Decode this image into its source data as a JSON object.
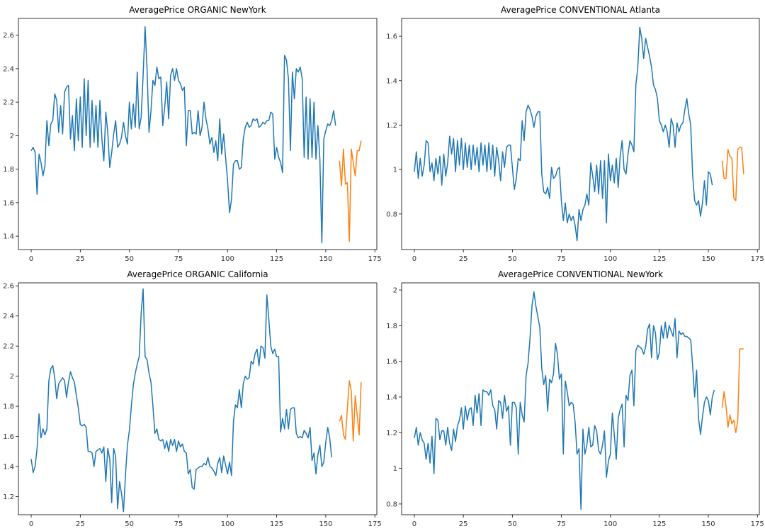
{
  "figure": {
    "colors": {
      "history": "#1f77b4",
      "forecast": "#ff7f0e",
      "axes": "#000000"
    }
  },
  "chart_data": [
    {
      "type": "line",
      "title": "AveragePrice ORGANIC NewYork",
      "xlim": [
        -6.5,
        176
      ],
      "ylim": [
        1.32,
        2.7
      ],
      "xticks": [
        0,
        25,
        50,
        75,
        100,
        125,
        150,
        175
      ],
      "yticks": [
        1.4,
        1.6,
        1.8,
        2.0,
        2.2,
        2.4,
        2.6
      ],
      "series": [
        {
          "name": "history",
          "color": "#1f77b4",
          "x_start": 0,
          "values": [
            1.91,
            1.93,
            1.9,
            1.65,
            1.89,
            1.84,
            1.76,
            1.82,
            2.09,
            1.94,
            2.07,
            2.09,
            2.25,
            2.21,
            2.02,
            2.18,
            2.01,
            2.26,
            2.29,
            2.3,
            1.98,
            2.12,
            1.91,
            2.22,
            1.97,
            2.23,
            1.93,
            2.34,
            2.0,
            2.33,
            1.93,
            2.21,
            1.96,
            2.18,
            1.93,
            2.21,
            1.98,
            1.85,
            2.14,
            2.02,
            1.81,
            1.9,
            2.01,
            2.09,
            1.93,
            1.95,
            1.99,
            2.08,
            2.0,
            1.95,
            2.2,
            2.04,
            2.19,
            2.05,
            2.38,
            2.04,
            2.11,
            2.36,
            2.65,
            2.4,
            2.02,
            2.15,
            2.33,
            2.3,
            2.41,
            2.34,
            2.35,
            2.06,
            2.17,
            2.32,
            2.1,
            2.36,
            2.4,
            2.33,
            2.4,
            2.33,
            2.31,
            2.27,
            2.29,
            1.94,
            2.15,
            2.15,
            2.01,
            2.02,
            2.01,
            2.15,
            2.0,
            2.05,
            2.2,
            2.1,
            2.04,
            1.95,
            1.99,
            1.9,
            1.97,
            1.85,
            2.1,
            1.89,
            2.01,
            1.87,
            1.73,
            1.54,
            1.62,
            1.83,
            1.85,
            1.85,
            1.8,
            1.81,
            1.98,
            2.05,
            2.08,
            2.05,
            2.06,
            2.1,
            2.09,
            2.1,
            2.05,
            2.06,
            2.08,
            2.07,
            2.09,
            2.09,
            2.14,
            2.13,
            1.86,
            1.93,
            1.87,
            1.84,
            1.78,
            2.48,
            2.45,
            2.34,
            1.91,
            2.38,
            2.22,
            2.4,
            2.38,
            2.41,
            2.34,
            1.87,
            2.23,
            1.86,
            2.22,
            1.87,
            2.2,
            1.86,
            2.06,
            1.86,
            1.36,
            1.98,
            2.03,
            2.07,
            2.06,
            2.09,
            2.15,
            2.06
          ]
        },
        {
          "name": "forecast",
          "color": "#ff7f0e",
          "x_start": 157,
          "values": [
            1.85,
            1.7,
            1.92,
            1.71,
            1.72,
            1.37,
            1.92,
            1.84,
            1.76,
            1.91,
            1.91,
            1.97
          ]
        }
      ]
    },
    {
      "type": "line",
      "title": "AveragePrice CONVENTIONAL Atlanta",
      "xlim": [
        -6.5,
        176
      ],
      "ylim": [
        0.64,
        1.68
      ],
      "xticks": [
        0,
        25,
        50,
        75,
        100,
        125,
        150,
        175
      ],
      "yticks": [
        0.8,
        1.0,
        1.2,
        1.4,
        1.6
      ],
      "series": [
        {
          "name": "history",
          "color": "#1f77b4",
          "x_start": 0,
          "values": [
            0.99,
            1.08,
            0.96,
            1.05,
            0.97,
            1.02,
            1.13,
            1.12,
            0.99,
            1.03,
            0.95,
            1.05,
            0.98,
            1.06,
            0.93,
            1.07,
            0.97,
            1.03,
            1.15,
            1.07,
            1.14,
            0.99,
            1.13,
            1.02,
            1.14,
            1.0,
            1.12,
            1.01,
            1.11,
            1.0,
            1.11,
            1.02,
            1.1,
            0.99,
            1.12,
            1.02,
            1.11,
            0.99,
            1.12,
            1.0,
            1.11,
            0.97,
            1.1,
            1.04,
            0.95,
            1.08,
            1.01,
            1.1,
            1.11,
            1.11,
            1.01,
            0.91,
            0.96,
            1.05,
            1.04,
            1.22,
            1.13,
            1.26,
            1.29,
            1.27,
            1.24,
            1.19,
            1.24,
            1.26,
            1.26,
            0.98,
            0.9,
            0.89,
            0.92,
            0.87,
            1.01,
            0.96,
            0.97,
            1.0,
            1.01,
            0.86,
            0.77,
            0.85,
            0.76,
            0.8,
            0.77,
            0.79,
            0.75,
            0.68,
            0.82,
            0.77,
            0.82,
            0.84,
            0.89,
            0.84,
            1.03,
            0.97,
            0.9,
            1.02,
            0.89,
            1.04,
            0.87,
            1.04,
            0.76,
            1.07,
            0.95,
            1.02,
            0.94,
            1.05,
            0.92,
            1.06,
            1.13,
            1.0,
            0.98,
            1.07,
            1.13,
            1.11,
            1.08,
            1.38,
            1.46,
            1.64,
            1.59,
            1.5,
            1.59,
            1.55,
            1.51,
            1.46,
            1.38,
            1.36,
            1.32,
            1.22,
            1.2,
            1.17,
            1.2,
            1.17,
            1.1,
            1.23,
            1.2,
            1.1,
            1.21,
            1.17,
            1.2,
            1.21,
            1.27,
            1.32,
            1.25,
            1.2,
            0.97,
            0.86,
            0.84,
            0.86,
            0.79,
            0.85,
            0.95,
            0.84,
            0.99,
            0.98,
            0.93
          ]
        },
        {
          "name": "forecast",
          "color": "#ff7f0e",
          "x_start": 157,
          "values": [
            1.04,
            0.96,
            0.96,
            1.09,
            1.06,
            1.05,
            0.87,
            0.86,
            1.09,
            1.1,
            1.1,
            0.98
          ]
        }
      ]
    },
    {
      "type": "line",
      "title": "AveragePrice ORGANIC California",
      "xlim": [
        -6.5,
        176
      ],
      "ylim": [
        1.08,
        2.62
      ],
      "xticks": [
        0,
        25,
        50,
        75,
        100,
        125,
        150,
        175
      ],
      "yticks": [
        1.2,
        1.4,
        1.6,
        1.8,
        2.0,
        2.2,
        2.4,
        2.6
      ],
      "series": [
        {
          "name": "history",
          "color": "#1f77b4",
          "x_start": 0,
          "values": [
            1.45,
            1.36,
            1.4,
            1.52,
            1.75,
            1.59,
            1.65,
            1.61,
            1.65,
            1.97,
            2.05,
            2.07,
            1.99,
            1.85,
            1.95,
            1.97,
            1.99,
            1.97,
            1.86,
            1.96,
            2.03,
            1.99,
            1.96,
            1.87,
            1.79,
            1.68,
            1.67,
            1.68,
            1.66,
            1.5,
            1.5,
            1.49,
            1.4,
            1.5,
            1.51,
            1.52,
            1.49,
            1.53,
            1.3,
            1.52,
            1.45,
            1.16,
            1.52,
            1.47,
            1.12,
            1.3,
            1.22,
            1.1,
            1.34,
            1.54,
            1.64,
            1.8,
            1.94,
            2.02,
            2.08,
            2.13,
            2.42,
            2.58,
            2.13,
            2.11,
            2.02,
            1.96,
            1.8,
            1.62,
            1.65,
            1.58,
            1.57,
            1.58,
            1.52,
            1.57,
            1.5,
            1.58,
            1.54,
            1.58,
            1.5,
            1.57,
            1.53,
            1.55,
            1.5,
            1.49,
            1.35,
            1.38,
            1.26,
            1.25,
            1.38,
            1.39,
            1.4,
            1.4,
            1.42,
            1.41,
            1.46,
            1.4,
            1.39,
            1.37,
            1.34,
            1.42,
            1.46,
            1.36,
            1.47,
            1.41,
            1.35,
            1.43,
            1.34,
            1.7,
            1.81,
            1.79,
            1.91,
            1.79,
            1.95,
            2.0,
            1.98,
            1.99,
            2.1,
            2.08,
            2.15,
            2.18,
            2.07,
            2.2,
            2.19,
            2.12,
            2.54,
            2.38,
            2.2,
            2.15,
            2.18,
            2.13,
            2.13,
            1.63,
            1.72,
            1.65,
            1.78,
            1.65,
            1.78,
            1.79,
            1.79,
            1.62,
            1.59,
            1.6,
            1.59,
            1.64,
            1.62,
            1.59,
            1.66,
            1.44,
            1.49,
            1.35,
            1.48,
            1.54,
            1.4,
            1.43,
            1.56,
            1.66,
            1.59,
            1.46
          ]
        },
        {
          "name": "forecast",
          "color": "#ff7f0e",
          "x_start": 157,
          "values": [
            1.7,
            1.74,
            1.61,
            1.58,
            1.79,
            1.97,
            1.9,
            1.57,
            1.87,
            1.74,
            1.61,
            1.96
          ]
        }
      ]
    },
    {
      "type": "line",
      "title": "AveragePrice CONVENTIONAL NewYork",
      "xlim": [
        -6.5,
        176
      ],
      "ylim": [
        0.74,
        2.04
      ],
      "xticks": [
        0,
        25,
        50,
        75,
        100,
        125,
        150,
        175
      ],
      "yticks": [
        0.8,
        1.0,
        1.2,
        1.4,
        1.6,
        1.8,
        2.0
      ],
      "series": [
        {
          "name": "history",
          "color": "#1f77b4",
          "x_start": 0,
          "values": [
            1.17,
            1.23,
            1.13,
            1.2,
            1.16,
            1.14,
            1.05,
            1.14,
            1.03,
            1.18,
            0.97,
            1.28,
            1.27,
            1.16,
            1.21,
            1.21,
            1.13,
            1.23,
            1.14,
            1.1,
            1.22,
            1.15,
            1.24,
            1.27,
            1.34,
            1.22,
            1.35,
            1.27,
            1.33,
            1.34,
            1.24,
            1.41,
            1.31,
            1.42,
            1.24,
            1.44,
            1.43,
            1.43,
            1.41,
            1.44,
            1.35,
            1.33,
            1.22,
            1.38,
            1.37,
            1.28,
            1.41,
            1.32,
            1.35,
            1.13,
            1.37,
            1.37,
            1.34,
            1.08,
            1.37,
            1.3,
            1.26,
            1.52,
            1.59,
            1.73,
            1.91,
            1.99,
            1.91,
            1.85,
            1.79,
            1.56,
            1.47,
            1.52,
            1.32,
            1.5,
            1.48,
            1.53,
            1.7,
            1.64,
            1.5,
            1.53,
            1.08,
            1.49,
            1.43,
            1.35,
            1.37,
            1.36,
            1.26,
            1.08,
            1.11,
            0.77,
            1.22,
            1.08,
            1.13,
            1.23,
            1.12,
            1.13,
            1.24,
            1.21,
            1.1,
            1.08,
            1.13,
            1.21,
            0.95,
            1.04,
            1.08,
            1.31,
            1.19,
            1.05,
            1.28,
            1.33,
            1.36,
            1.12,
            1.41,
            1.38,
            1.52,
            1.55,
            1.35,
            1.66,
            1.69,
            1.68,
            1.67,
            1.64,
            1.68,
            1.78,
            1.81,
            1.62,
            1.8,
            1.76,
            1.61,
            1.65,
            1.8,
            1.73,
            1.82,
            1.73,
            1.8,
            1.77,
            1.74,
            1.84,
            1.62,
            1.77,
            1.75,
            1.76,
            1.74,
            1.74,
            1.73,
            1.72,
            1.57,
            1.4,
            1.55,
            1.28,
            1.19,
            1.29,
            1.37,
            1.4,
            1.38,
            1.3,
            1.4,
            1.44
          ]
        },
        {
          "name": "forecast",
          "color": "#ff7f0e",
          "x_start": 157,
          "values": [
            1.34,
            1.43,
            1.35,
            1.23,
            1.3,
            1.25,
            1.27,
            1.2,
            1.27,
            1.67,
            1.67,
            1.67
          ]
        }
      ]
    }
  ]
}
